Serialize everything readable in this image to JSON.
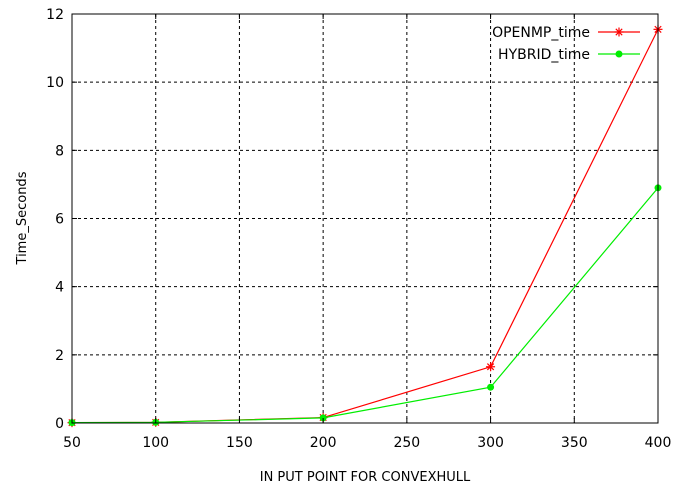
{
  "chart_data": {
    "type": "line",
    "xlabel": "IN PUT POINT FOR CONVEXHULL",
    "ylabel": "Time_Seconds",
    "xlim": [
      50,
      400
    ],
    "ylim": [
      0,
      12
    ],
    "xticks": [
      50,
      100,
      150,
      200,
      250,
      300,
      350,
      400
    ],
    "yticks": [
      0,
      2,
      4,
      6,
      8,
      10,
      12
    ],
    "grid": true,
    "grid_style": "dashed",
    "legend_position": "top-right",
    "x": [
      50,
      100,
      200,
      300,
      400
    ],
    "series": [
      {
        "name": "OPENMP_time",
        "values": [
          0.01,
          0.02,
          0.16,
          1.65,
          11.55
        ],
        "color": "#ff0000",
        "marker": "star"
      },
      {
        "name": "HYBRID_time",
        "values": [
          0.01,
          0.02,
          0.15,
          1.05,
          6.9
        ],
        "color": "#00ee00",
        "marker": "circle"
      }
    ]
  }
}
